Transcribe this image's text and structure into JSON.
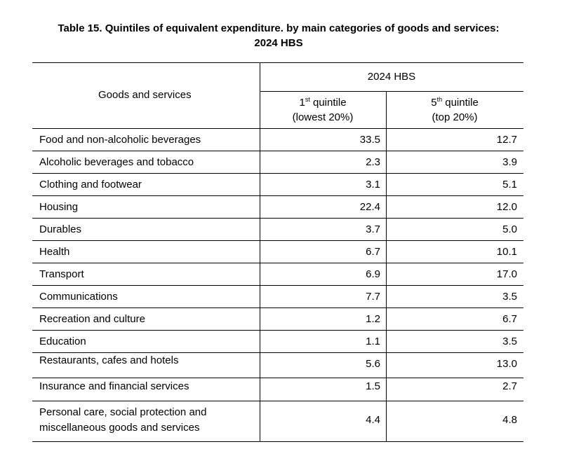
{
  "caption": {
    "line1": "Table 15. Quintiles of equivalent expenditure. by main categories of goods and services:",
    "line2": "2024 HBS"
  },
  "header": {
    "row_header": "Goods and services",
    "group_label": "2024 HBS",
    "col1_ord_num": "1",
    "col1_ord_suffix": "st",
    "col1_word": " quintile",
    "col1_line2": "(lowest 20%)",
    "col2_ord_num": "5",
    "col2_ord_suffix": "th",
    "col2_word": " quintile",
    "col2_line2": "(top 20%)"
  },
  "rows": [
    {
      "label": "Food and non-alcoholic beverages",
      "q1": "33.5",
      "q5": "12.7"
    },
    {
      "label": "Alcoholic beverages and tobacco",
      "q1": "2.3",
      "q5": "3.9"
    },
    {
      "label": "Clothing and footwear",
      "q1": "3.1",
      "q5": "5.1"
    },
    {
      "label": "Housing",
      "q1": "22.4",
      "q5": "12.0"
    },
    {
      "label": "Durables",
      "q1": "3.7",
      "q5": "5.0"
    },
    {
      "label": "Health",
      "q1": "6.7",
      "q5": "10.1"
    },
    {
      "label": "Transport",
      "q1": "6.9",
      "q5": "17.0"
    },
    {
      "label": "Communications",
      "q1": "7.7",
      "q5": "3.5"
    },
    {
      "label": "Recreation and culture",
      "q1": "1.2",
      "q5": "6.7"
    },
    {
      "label": "Education",
      "q1": "1.1",
      "q5": "3.5"
    },
    {
      "label": "Restaurants, cafes and hotels",
      "q1": "5.6",
      "q5": "13.0"
    },
    {
      "label": "Insurance and financial services",
      "q1": "1.5",
      "q5": "2.7"
    },
    {
      "label_line1": "Personal care, social protection and",
      "label_line2": "miscellaneous goods and services",
      "q1": "4.4",
      "q5": "4.8"
    }
  ]
}
